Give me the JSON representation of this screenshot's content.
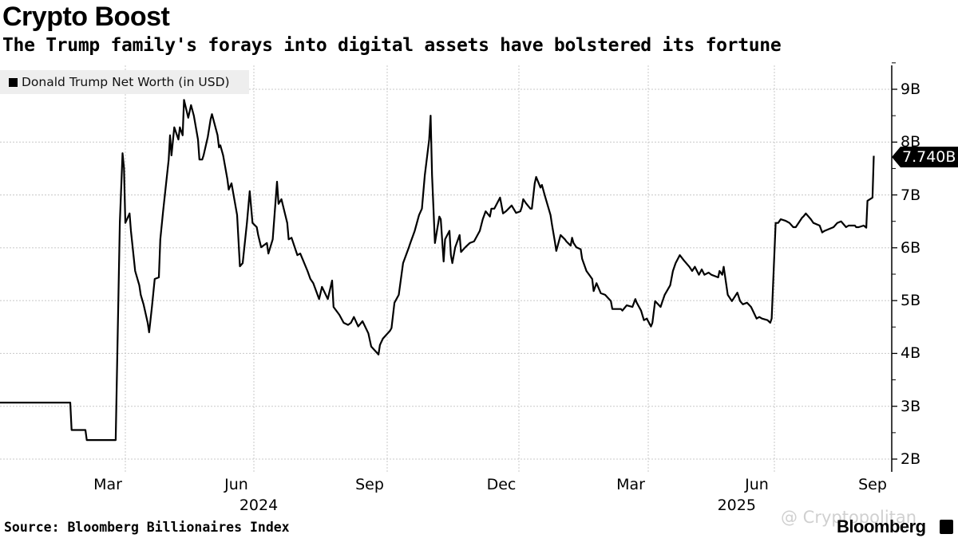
{
  "header": {
    "title": "Crypto Boost",
    "subtitle": "The Trump family's forays into digital assets have bolstered its fortune"
  },
  "footer": {
    "source": "Source: Bloomberg Billionaires Index",
    "watermark": "@ Cryptopolitan",
    "logo": "Bloomberg"
  },
  "chart_data": {
    "type": "line",
    "title": "Crypto Boost",
    "subtitle": "The Trump family's forays into digital assets have bolstered its fortune",
    "legend": {
      "position": "top-left",
      "entries": [
        "Donald Trump Net Worth (in USD)"
      ]
    },
    "line_color": "#000000",
    "grid": true,
    "y_axis": {
      "side": "right",
      "ylim": [
        2,
        9
      ],
      "ticks": [
        "9B",
        "8B",
        "7B",
        "6B",
        "5B",
        "4B",
        "3B",
        "2B"
      ],
      "tick_values": [
        9,
        8,
        7,
        6,
        5,
        4,
        3,
        2
      ],
      "unit": "B"
    },
    "x_axis": {
      "ticks": [
        {
          "label": "Mar",
          "date": "2024-03-01"
        },
        {
          "label": "Jun",
          "date": "2024-06-01"
        },
        {
          "label": "Sep",
          "date": "2024-09-01"
        },
        {
          "label": "Dec",
          "date": "2024-12-01"
        },
        {
          "label": "Mar",
          "date": "2025-03-01"
        },
        {
          "label": "Jun",
          "date": "2025-06-01"
        },
        {
          "label": "Sep",
          "date": "2025-09-01"
        }
      ],
      "years": [
        {
          "label": "2024",
          "date": "2024-06-01"
        },
        {
          "label": "2025",
          "date": "2025-05-01"
        }
      ]
    },
    "last_value_label": "7.740B",
    "series": [
      {
        "name": "Donald Trump Net Worth (in USD)",
        "points": [
          [
            "2023-12-01",
            3.07
          ],
          [
            "2024-01-21",
            3.07
          ],
          [
            "2024-01-22",
            2.55
          ],
          [
            "2024-02-01",
            2.55
          ],
          [
            "2024-02-02",
            2.36
          ],
          [
            "2024-02-23",
            2.36
          ],
          [
            "2024-02-26",
            6.47
          ],
          [
            "2024-02-28",
            7.79
          ],
          [
            "2024-02-29",
            7.51
          ],
          [
            "2024-03-01",
            6.47
          ],
          [
            "2024-03-04",
            6.65
          ],
          [
            "2024-03-05",
            6.32
          ],
          [
            "2024-03-08",
            5.56
          ],
          [
            "2024-03-11",
            5.29
          ],
          [
            "2024-03-12",
            5.11
          ],
          [
            "2024-03-14",
            4.93
          ],
          [
            "2024-03-17",
            4.58
          ],
          [
            "2024-03-18",
            4.4
          ],
          [
            "2024-03-20",
            4.88
          ],
          [
            "2024-03-22",
            5.41
          ],
          [
            "2024-03-25",
            5.44
          ],
          [
            "2024-03-26",
            6.16
          ],
          [
            "2024-03-28",
            6.69
          ],
          [
            "2024-04-01",
            7.67
          ],
          [
            "2024-04-02",
            8.13
          ],
          [
            "2024-04-03",
            7.75
          ],
          [
            "2024-04-05",
            8.28
          ],
          [
            "2024-04-08",
            8.05
          ],
          [
            "2024-04-09",
            8.28
          ],
          [
            "2024-04-11",
            8.13
          ],
          [
            "2024-04-12",
            8.8
          ],
          [
            "2024-04-15",
            8.46
          ],
          [
            "2024-04-17",
            8.7
          ],
          [
            "2024-04-19",
            8.5
          ],
          [
            "2024-04-22",
            8.05
          ],
          [
            "2024-04-23",
            7.67
          ],
          [
            "2024-04-25",
            7.67
          ],
          [
            "2024-04-26",
            7.75
          ],
          [
            "2024-04-29",
            8.1
          ],
          [
            "2024-05-01",
            8.43
          ],
          [
            "2024-05-02",
            8.53
          ],
          [
            "2024-05-06",
            8.13
          ],
          [
            "2024-05-07",
            7.9
          ],
          [
            "2024-05-08",
            7.94
          ],
          [
            "2024-05-10",
            7.75
          ],
          [
            "2024-05-13",
            7.3
          ],
          [
            "2024-05-14",
            7.1
          ],
          [
            "2024-05-16",
            7.22
          ],
          [
            "2024-05-20",
            6.62
          ],
          [
            "2024-05-22",
            5.65
          ],
          [
            "2024-05-24",
            5.71
          ],
          [
            "2024-05-27",
            6.47
          ],
          [
            "2024-05-29",
            7.07
          ],
          [
            "2024-05-31",
            6.47
          ],
          [
            "2024-06-03",
            6.39
          ],
          [
            "2024-06-04",
            6.24
          ],
          [
            "2024-06-06",
            6.01
          ],
          [
            "2024-06-10",
            6.09
          ],
          [
            "2024-06-11",
            5.89
          ],
          [
            "2024-06-14",
            6.16
          ],
          [
            "2024-06-17",
            7.25
          ],
          [
            "2024-06-18",
            6.83
          ],
          [
            "2024-06-20",
            6.92
          ],
          [
            "2024-06-24",
            6.47
          ],
          [
            "2024-06-25",
            6.16
          ],
          [
            "2024-06-27",
            6.19
          ],
          [
            "2024-07-01",
            5.86
          ],
          [
            "2024-07-03",
            5.89
          ],
          [
            "2024-07-08",
            5.56
          ],
          [
            "2024-07-10",
            5.41
          ],
          [
            "2024-07-12",
            5.33
          ],
          [
            "2024-07-16",
            5.03
          ],
          [
            "2024-07-18",
            5.26
          ],
          [
            "2024-07-22",
            5.03
          ],
          [
            "2024-07-25",
            5.38
          ],
          [
            "2024-07-26",
            4.88
          ],
          [
            "2024-07-30",
            4.73
          ],
          [
            "2024-08-02",
            4.58
          ],
          [
            "2024-08-05",
            4.54
          ],
          [
            "2024-08-07",
            4.58
          ],
          [
            "2024-08-09",
            4.69
          ],
          [
            "2024-08-12",
            4.51
          ],
          [
            "2024-08-15",
            4.61
          ],
          [
            "2024-08-19",
            4.38
          ],
          [
            "2024-08-21",
            4.13
          ],
          [
            "2024-08-26",
            3.98
          ],
          [
            "2024-08-27",
            4.16
          ],
          [
            "2024-08-29",
            4.28
          ],
          [
            "2024-09-03",
            4.43
          ],
          [
            "2024-09-04",
            4.48
          ],
          [
            "2024-09-06",
            4.96
          ],
          [
            "2024-09-09",
            5.11
          ],
          [
            "2024-09-12",
            5.71
          ],
          [
            "2024-09-16",
            6.01
          ],
          [
            "2024-09-17",
            6.09
          ],
          [
            "2024-09-20",
            6.32
          ],
          [
            "2024-09-23",
            6.62
          ],
          [
            "2024-09-25",
            6.74
          ],
          [
            "2024-09-27",
            7.37
          ],
          [
            "2024-09-30",
            8.05
          ],
          [
            "2024-10-01",
            8.5
          ],
          [
            "2024-10-02",
            7.37
          ],
          [
            "2024-10-04",
            6.09
          ],
          [
            "2024-10-07",
            6.59
          ],
          [
            "2024-10-08",
            6.54
          ],
          [
            "2024-10-10",
            5.74
          ],
          [
            "2024-10-11",
            6.16
          ],
          [
            "2024-10-14",
            6.32
          ],
          [
            "2024-10-15",
            5.86
          ],
          [
            "2024-10-16",
            5.71
          ],
          [
            "2024-10-18",
            6.01
          ],
          [
            "2024-10-21",
            6.24
          ],
          [
            "2024-10-22",
            5.92
          ],
          [
            "2024-10-25",
            6.01
          ],
          [
            "2024-10-28",
            6.09
          ],
          [
            "2024-10-31",
            6.12
          ],
          [
            "2024-11-04",
            6.32
          ],
          [
            "2024-11-06",
            6.54
          ],
          [
            "2024-11-08",
            6.69
          ],
          [
            "2024-11-11",
            6.59
          ],
          [
            "2024-11-12",
            6.74
          ],
          [
            "2024-11-14",
            6.74
          ],
          [
            "2024-11-18",
            6.95
          ],
          [
            "2024-11-20",
            6.65
          ],
          [
            "2024-11-22",
            6.69
          ],
          [
            "2024-11-26",
            6.8
          ],
          [
            "2024-11-29",
            6.66
          ],
          [
            "2024-12-02",
            6.69
          ],
          [
            "2024-12-03",
            6.77
          ],
          [
            "2024-12-04",
            6.92
          ],
          [
            "2024-12-06",
            6.84
          ],
          [
            "2024-12-09",
            6.74
          ],
          [
            "2024-12-10",
            6.74
          ],
          [
            "2024-12-12",
            7.22
          ],
          [
            "2024-12-13",
            7.34
          ],
          [
            "2024-12-16",
            7.14
          ],
          [
            "2024-12-17",
            7.19
          ],
          [
            "2024-12-19",
            6.99
          ],
          [
            "2024-12-23",
            6.62
          ],
          [
            "2024-12-24",
            6.44
          ],
          [
            "2024-12-26",
            6.12
          ],
          [
            "2024-12-27",
            5.94
          ],
          [
            "2024-12-30",
            6.24
          ],
          [
            "2025-01-02",
            6.16
          ],
          [
            "2025-01-03",
            6.12
          ],
          [
            "2025-01-06",
            6.04
          ],
          [
            "2025-01-07",
            6.19
          ],
          [
            "2025-01-08",
            6.09
          ],
          [
            "2025-01-10",
            6.01
          ],
          [
            "2025-01-13",
            5.97
          ],
          [
            "2025-01-14",
            5.79
          ],
          [
            "2025-01-17",
            5.56
          ],
          [
            "2025-01-21",
            5.41
          ],
          [
            "2025-01-22",
            5.18
          ],
          [
            "2025-01-24",
            5.33
          ],
          [
            "2025-01-27",
            5.14
          ],
          [
            "2025-01-30",
            5.11
          ],
          [
            "2025-02-03",
            4.99
          ],
          [
            "2025-02-04",
            4.84
          ],
          [
            "2025-02-06",
            4.84
          ],
          [
            "2025-02-10",
            4.84
          ],
          [
            "2025-02-11",
            4.81
          ],
          [
            "2025-02-14",
            4.91
          ],
          [
            "2025-02-18",
            4.88
          ],
          [
            "2025-02-20",
            5.03
          ],
          [
            "2025-02-21",
            4.96
          ],
          [
            "2025-02-24",
            4.81
          ],
          [
            "2025-02-26",
            4.63
          ],
          [
            "2025-02-28",
            4.66
          ],
          [
            "2025-03-03",
            4.51
          ],
          [
            "2025-03-04",
            4.58
          ],
          [
            "2025-03-06",
            4.99
          ],
          [
            "2025-03-10",
            4.88
          ],
          [
            "2025-03-11",
            4.96
          ],
          [
            "2025-03-13",
            5.11
          ],
          [
            "2025-03-17",
            5.29
          ],
          [
            "2025-03-19",
            5.56
          ],
          [
            "2025-03-21",
            5.71
          ],
          [
            "2025-03-24",
            5.86
          ],
          [
            "2025-03-27",
            5.76
          ],
          [
            "2025-03-31",
            5.64
          ],
          [
            "2025-04-02",
            5.56
          ],
          [
            "2025-04-04",
            5.64
          ],
          [
            "2025-04-07",
            5.49
          ],
          [
            "2025-04-09",
            5.59
          ],
          [
            "2025-04-11",
            5.49
          ],
          [
            "2025-04-14",
            5.53
          ],
          [
            "2025-04-16",
            5.49
          ],
          [
            "2025-04-21",
            5.44
          ],
          [
            "2025-04-22",
            5.56
          ],
          [
            "2025-04-24",
            5.49
          ],
          [
            "2025-04-25",
            5.64
          ],
          [
            "2025-04-28",
            5.11
          ],
          [
            "2025-05-01",
            4.99
          ],
          [
            "2025-05-05",
            5.15
          ],
          [
            "2025-05-07",
            4.99
          ],
          [
            "2025-05-09",
            4.93
          ],
          [
            "2025-05-12",
            4.96
          ],
          [
            "2025-05-15",
            4.88
          ],
          [
            "2025-05-19",
            4.66
          ],
          [
            "2025-05-21",
            4.69
          ],
          [
            "2025-05-23",
            4.66
          ],
          [
            "2025-05-27",
            4.63
          ],
          [
            "2025-05-29",
            4.58
          ],
          [
            "2025-05-30",
            4.66
          ],
          [
            "2025-06-02",
            6.47
          ],
          [
            "2025-06-04",
            6.47
          ],
          [
            "2025-06-06",
            6.54
          ],
          [
            "2025-06-10",
            6.51
          ],
          [
            "2025-06-13",
            6.47
          ],
          [
            "2025-06-16",
            6.39
          ],
          [
            "2025-06-18",
            6.39
          ],
          [
            "2025-06-23",
            6.57
          ],
          [
            "2025-06-24",
            6.59
          ],
          [
            "2025-06-26",
            6.65
          ],
          [
            "2025-06-30",
            6.54
          ],
          [
            "2025-07-02",
            6.47
          ],
          [
            "2025-07-07",
            6.42
          ],
          [
            "2025-07-09",
            6.29
          ],
          [
            "2025-07-11",
            6.32
          ],
          [
            "2025-07-15",
            6.36
          ],
          [
            "2025-07-18",
            6.39
          ],
          [
            "2025-07-21",
            6.47
          ],
          [
            "2025-07-24",
            6.5
          ],
          [
            "2025-07-28",
            6.39
          ],
          [
            "2025-07-30",
            6.42
          ],
          [
            "2025-08-04",
            6.42
          ],
          [
            "2025-08-05",
            6.39
          ],
          [
            "2025-08-07",
            6.39
          ],
          [
            "2025-08-11",
            6.42
          ],
          [
            "2025-08-13",
            6.38
          ],
          [
            "2025-08-14",
            6.89
          ],
          [
            "2025-08-18",
            6.95
          ],
          [
            "2025-08-19",
            7.74
          ]
        ]
      }
    ]
  }
}
